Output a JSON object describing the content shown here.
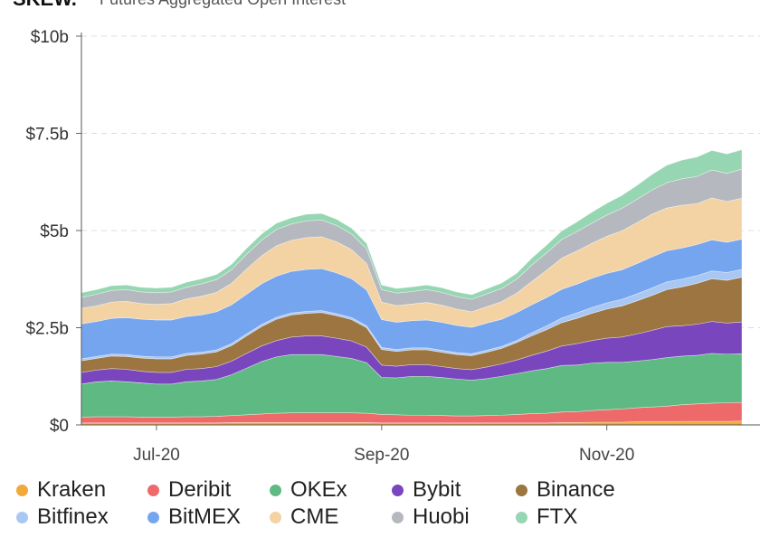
{
  "header": {
    "brand": "SKEW.",
    "subtitle": "Futures Aggregated Open Interest"
  },
  "colors": {
    "Kraken": "#f0a93a",
    "Deribit": "#ee6a6a",
    "OKEx": "#5fb982",
    "Bybit": "#7a46be",
    "Binance": "#9c7540",
    "Bitfinex": "#a9c7f3",
    "BitMEX": "#76a5ef",
    "CME": "#f3d2a4",
    "Huobi": "#b5b9bf",
    "FTX": "#97d6b3"
  },
  "chart_data": {
    "type": "area",
    "stacked": true,
    "title": "",
    "xlabel": "",
    "ylabel": "",
    "ylim": [
      0,
      10
    ],
    "y_unit": "b",
    "y_ticks": [
      "$0",
      "$2.5b",
      "$5b",
      "$7.5b",
      "$10b"
    ],
    "y_tick_values": [
      0,
      2.5,
      5,
      7.5,
      10
    ],
    "x_ticks": [
      "Jul-20",
      "Sep-20",
      "Nov-20"
    ],
    "x_tick_positions": [
      10,
      40,
      70
    ],
    "grid": "horizontal-dashed",
    "x": [
      0,
      2,
      4,
      6,
      8,
      10,
      12,
      14,
      16,
      18,
      20,
      22,
      24,
      26,
      28,
      30,
      32,
      34,
      36,
      38,
      40,
      42,
      44,
      46,
      48,
      50,
      52,
      54,
      56,
      58,
      60,
      62,
      64,
      66,
      68,
      70,
      72,
      74,
      76,
      78,
      80,
      82,
      84,
      86,
      88
    ],
    "series": [
      {
        "name": "Kraken",
        "values": [
          0.05,
          0.05,
          0.05,
          0.05,
          0.05,
          0.05,
          0.05,
          0.05,
          0.05,
          0.05,
          0.06,
          0.06,
          0.06,
          0.06,
          0.06,
          0.06,
          0.06,
          0.06,
          0.06,
          0.06,
          0.05,
          0.05,
          0.05,
          0.05,
          0.05,
          0.05,
          0.05,
          0.05,
          0.05,
          0.05,
          0.05,
          0.05,
          0.06,
          0.06,
          0.07,
          0.07,
          0.07,
          0.08,
          0.08,
          0.08,
          0.09,
          0.09,
          0.09,
          0.09,
          0.1
        ]
      },
      {
        "name": "Deribit",
        "values": [
          0.15,
          0.16,
          0.16,
          0.16,
          0.15,
          0.15,
          0.15,
          0.16,
          0.16,
          0.17,
          0.18,
          0.2,
          0.22,
          0.24,
          0.25,
          0.25,
          0.25,
          0.25,
          0.25,
          0.24,
          0.22,
          0.21,
          0.2,
          0.2,
          0.19,
          0.18,
          0.18,
          0.19,
          0.2,
          0.22,
          0.24,
          0.25,
          0.27,
          0.28,
          0.3,
          0.32,
          0.34,
          0.36,
          0.38,
          0.4,
          0.43,
          0.45,
          0.47,
          0.48,
          0.48
        ]
      },
      {
        "name": "OKEx",
        "values": [
          0.85,
          0.9,
          0.92,
          0.9,
          0.88,
          0.85,
          0.85,
          0.9,
          0.92,
          0.95,
          1.05,
          1.2,
          1.35,
          1.45,
          1.5,
          1.5,
          1.5,
          1.45,
          1.4,
          1.3,
          0.95,
          0.95,
          1.0,
          1.0,
          0.98,
          0.95,
          0.92,
          0.95,
          1.0,
          1.05,
          1.1,
          1.15,
          1.2,
          1.2,
          1.22,
          1.22,
          1.2,
          1.2,
          1.22,
          1.25,
          1.25,
          1.25,
          1.28,
          1.25,
          1.25
        ]
      },
      {
        "name": "Bybit",
        "values": [
          0.3,
          0.3,
          0.32,
          0.32,
          0.3,
          0.3,
          0.3,
          0.32,
          0.32,
          0.33,
          0.35,
          0.38,
          0.4,
          0.42,
          0.45,
          0.48,
          0.48,
          0.47,
          0.45,
          0.4,
          0.32,
          0.3,
          0.3,
          0.3,
          0.28,
          0.27,
          0.27,
          0.3,
          0.32,
          0.35,
          0.4,
          0.45,
          0.5,
          0.55,
          0.58,
          0.62,
          0.65,
          0.7,
          0.75,
          0.8,
          0.78,
          0.8,
          0.82,
          0.8,
          0.82
        ]
      },
      {
        "name": "Binance",
        "values": [
          0.3,
          0.3,
          0.32,
          0.33,
          0.34,
          0.35,
          0.35,
          0.36,
          0.37,
          0.38,
          0.4,
          0.45,
          0.5,
          0.55,
          0.57,
          0.58,
          0.6,
          0.58,
          0.55,
          0.5,
          0.4,
          0.38,
          0.38,
          0.38,
          0.37,
          0.36,
          0.36,
          0.38,
          0.4,
          0.45,
          0.5,
          0.55,
          0.6,
          0.65,
          0.7,
          0.75,
          0.8,
          0.85,
          0.9,
          0.95,
          1.0,
          1.05,
          1.1,
          1.1,
          1.15
        ]
      },
      {
        "name": "Bitfinex",
        "values": [
          0.05,
          0.05,
          0.05,
          0.05,
          0.05,
          0.05,
          0.05,
          0.05,
          0.05,
          0.05,
          0.05,
          0.05,
          0.05,
          0.05,
          0.05,
          0.05,
          0.05,
          0.05,
          0.05,
          0.05,
          0.05,
          0.05,
          0.05,
          0.05,
          0.05,
          0.05,
          0.05,
          0.05,
          0.05,
          0.05,
          0.08,
          0.1,
          0.12,
          0.14,
          0.15,
          0.16,
          0.17,
          0.18,
          0.19,
          0.2,
          0.2,
          0.2,
          0.2,
          0.2,
          0.2
        ]
      },
      {
        "name": "BitMEX",
        "values": [
          0.9,
          0.9,
          0.92,
          0.95,
          0.95,
          0.95,
          0.95,
          0.95,
          0.96,
          0.98,
          1.0,
          1.02,
          1.05,
          1.06,
          1.07,
          1.08,
          1.08,
          1.05,
          1.0,
          0.92,
          0.72,
          0.7,
          0.7,
          0.72,
          0.72,
          0.7,
          0.68,
          0.7,
          0.7,
          0.72,
          0.72,
          0.73,
          0.74,
          0.74,
          0.75,
          0.76,
          0.76,
          0.78,
          0.8,
          0.8,
          0.8,
          0.8,
          0.8,
          0.78,
          0.78
        ]
      },
      {
        "name": "CME",
        "values": [
          0.4,
          0.4,
          0.42,
          0.42,
          0.4,
          0.4,
          0.42,
          0.45,
          0.48,
          0.5,
          0.55,
          0.65,
          0.72,
          0.78,
          0.8,
          0.82,
          0.82,
          0.8,
          0.75,
          0.68,
          0.45,
          0.43,
          0.43,
          0.45,
          0.44,
          0.42,
          0.4,
          0.42,
          0.45,
          0.5,
          0.6,
          0.7,
          0.8,
          0.85,
          0.9,
          0.95,
          1.0,
          1.05,
          1.1,
          1.1,
          1.1,
          1.05,
          1.08,
          1.05,
          1.05
        ]
      },
      {
        "name": "Huobi",
        "values": [
          0.28,
          0.3,
          0.3,
          0.3,
          0.3,
          0.3,
          0.3,
          0.3,
          0.32,
          0.33,
          0.35,
          0.38,
          0.4,
          0.42,
          0.42,
          0.43,
          0.43,
          0.42,
          0.4,
          0.38,
          0.32,
          0.32,
          0.32,
          0.33,
          0.33,
          0.32,
          0.32,
          0.33,
          0.34,
          0.36,
          0.42,
          0.45,
          0.48,
          0.5,
          0.52,
          0.55,
          0.58,
          0.6,
          0.62,
          0.65,
          0.68,
          0.7,
          0.72,
          0.72,
          0.75
        ]
      },
      {
        "name": "FTX",
        "values": [
          0.12,
          0.12,
          0.12,
          0.12,
          0.12,
          0.12,
          0.12,
          0.13,
          0.13,
          0.13,
          0.14,
          0.15,
          0.16,
          0.16,
          0.16,
          0.17,
          0.17,
          0.16,
          0.15,
          0.14,
          0.12,
          0.12,
          0.12,
          0.12,
          0.12,
          0.12,
          0.12,
          0.13,
          0.14,
          0.15,
          0.18,
          0.2,
          0.22,
          0.25,
          0.28,
          0.3,
          0.33,
          0.36,
          0.4,
          0.45,
          0.48,
          0.5,
          0.5,
          0.5,
          0.5
        ]
      }
    ],
    "legend_position": "bottom"
  },
  "legend": {
    "items": [
      {
        "label": "Kraken"
      },
      {
        "label": "Deribit"
      },
      {
        "label": "OKEx"
      },
      {
        "label": "Bybit"
      },
      {
        "label": "Binance"
      },
      {
        "label": "Bitfinex"
      },
      {
        "label": "BitMEX"
      },
      {
        "label": "CME"
      },
      {
        "label": "Huobi"
      },
      {
        "label": "FTX"
      }
    ]
  }
}
